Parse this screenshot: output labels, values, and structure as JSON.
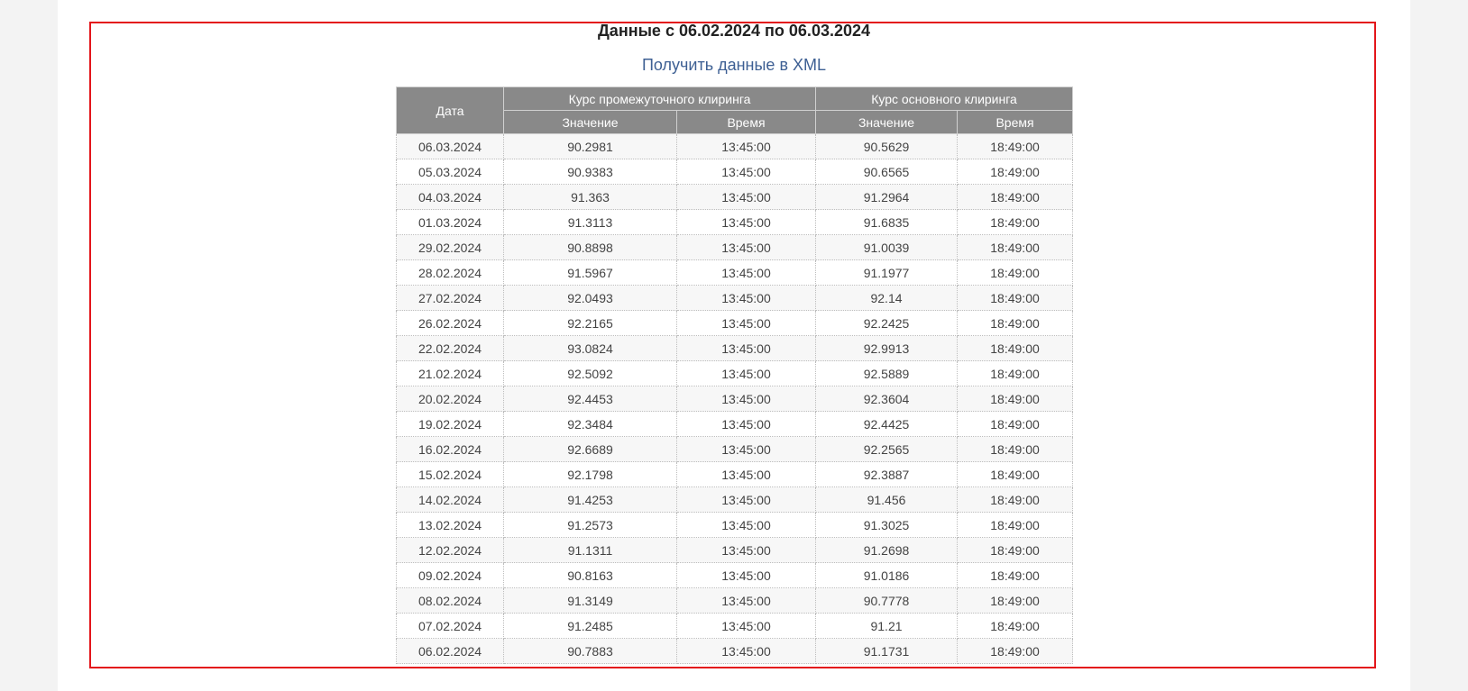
{
  "heading": "Данные с 06.02.2024 по 06.03.2024",
  "xml_link": "Получить данные в XML",
  "table": {
    "header": {
      "date": "Дата",
      "group_intermediate": "Курс промежуточного клиринга",
      "group_main": "Курс основного клиринга",
      "value": "Значение",
      "time": "Время"
    },
    "rows": [
      {
        "date": "06.03.2024",
        "v1": "90.2981",
        "t1": "13:45:00",
        "v2": "90.5629",
        "t2": "18:49:00"
      },
      {
        "date": "05.03.2024",
        "v1": "90.9383",
        "t1": "13:45:00",
        "v2": "90.6565",
        "t2": "18:49:00"
      },
      {
        "date": "04.03.2024",
        "v1": "91.363",
        "t1": "13:45:00",
        "v2": "91.2964",
        "t2": "18:49:00"
      },
      {
        "date": "01.03.2024",
        "v1": "91.3113",
        "t1": "13:45:00",
        "v2": "91.6835",
        "t2": "18:49:00"
      },
      {
        "date": "29.02.2024",
        "v1": "90.8898",
        "t1": "13:45:00",
        "v2": "91.0039",
        "t2": "18:49:00"
      },
      {
        "date": "28.02.2024",
        "v1": "91.5967",
        "t1": "13:45:00",
        "v2": "91.1977",
        "t2": "18:49:00"
      },
      {
        "date": "27.02.2024",
        "v1": "92.0493",
        "t1": "13:45:00",
        "v2": "92.14",
        "t2": "18:49:00"
      },
      {
        "date": "26.02.2024",
        "v1": "92.2165",
        "t1": "13:45:00",
        "v2": "92.2425",
        "t2": "18:49:00"
      },
      {
        "date": "22.02.2024",
        "v1": "93.0824",
        "t1": "13:45:00",
        "v2": "92.9913",
        "t2": "18:49:00"
      },
      {
        "date": "21.02.2024",
        "v1": "92.5092",
        "t1": "13:45:00",
        "v2": "92.5889",
        "t2": "18:49:00"
      },
      {
        "date": "20.02.2024",
        "v1": "92.4453",
        "t1": "13:45:00",
        "v2": "92.3604",
        "t2": "18:49:00"
      },
      {
        "date": "19.02.2024",
        "v1": "92.3484",
        "t1": "13:45:00",
        "v2": "92.4425",
        "t2": "18:49:00"
      },
      {
        "date": "16.02.2024",
        "v1": "92.6689",
        "t1": "13:45:00",
        "v2": "92.2565",
        "t2": "18:49:00"
      },
      {
        "date": "15.02.2024",
        "v1": "92.1798",
        "t1": "13:45:00",
        "v2": "92.3887",
        "t2": "18:49:00"
      },
      {
        "date": "14.02.2024",
        "v1": "91.4253",
        "t1": "13:45:00",
        "v2": "91.456",
        "t2": "18:49:00"
      },
      {
        "date": "13.02.2024",
        "v1": "91.2573",
        "t1": "13:45:00",
        "v2": "91.3025",
        "t2": "18:49:00"
      },
      {
        "date": "12.02.2024",
        "v1": "91.1311",
        "t1": "13:45:00",
        "v2": "91.2698",
        "t2": "18:49:00"
      },
      {
        "date": "09.02.2024",
        "v1": "90.8163",
        "t1": "13:45:00",
        "v2": "91.0186",
        "t2": "18:49:00"
      },
      {
        "date": "08.02.2024",
        "v1": "91.3149",
        "t1": "13:45:00",
        "v2": "90.7778",
        "t2": "18:49:00"
      },
      {
        "date": "07.02.2024",
        "v1": "91.2485",
        "t1": "13:45:00",
        "v2": "91.21",
        "t2": "18:49:00"
      },
      {
        "date": "06.02.2024",
        "v1": "90.7883",
        "t1": "13:45:00",
        "v2": "91.1731",
        "t2": "18:49:00"
      }
    ]
  },
  "colors": {
    "frame_border": "#e3161b",
    "header_bg": "#898989",
    "link": "#3d5f93"
  }
}
